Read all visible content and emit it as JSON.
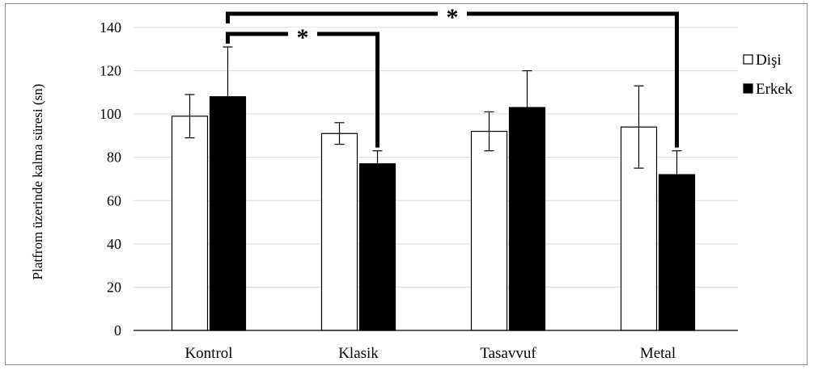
{
  "chart_data": {
    "type": "bar",
    "title": "",
    "xlabel": "",
    "ylabel": "Platfrom üzerinde kalma süresi (sn)",
    "ylim": [
      0,
      140
    ],
    "yticks": [
      0,
      20,
      40,
      60,
      80,
      100,
      120,
      140
    ],
    "grid": true,
    "legend_position": "right",
    "categories": [
      "Kontrol",
      "Klasik",
      "Tasavvuf",
      "Metal"
    ],
    "series": [
      {
        "name": "Dişi",
        "values": [
          99,
          91,
          92,
          94
        ],
        "errors": [
          10,
          5,
          9,
          19
        ],
        "color": "#ffffff"
      },
      {
        "name": "Erkek",
        "values": [
          108,
          77,
          103,
          72
        ],
        "errors": [
          23,
          6,
          17,
          11
        ],
        "color": "#000000"
      }
    ],
    "significance": [
      {
        "from_category": 0,
        "to_category": 1,
        "series": 1,
        "label": "*"
      },
      {
        "from_category": 0,
        "to_category": 3,
        "series": 1,
        "label": "*"
      }
    ]
  }
}
